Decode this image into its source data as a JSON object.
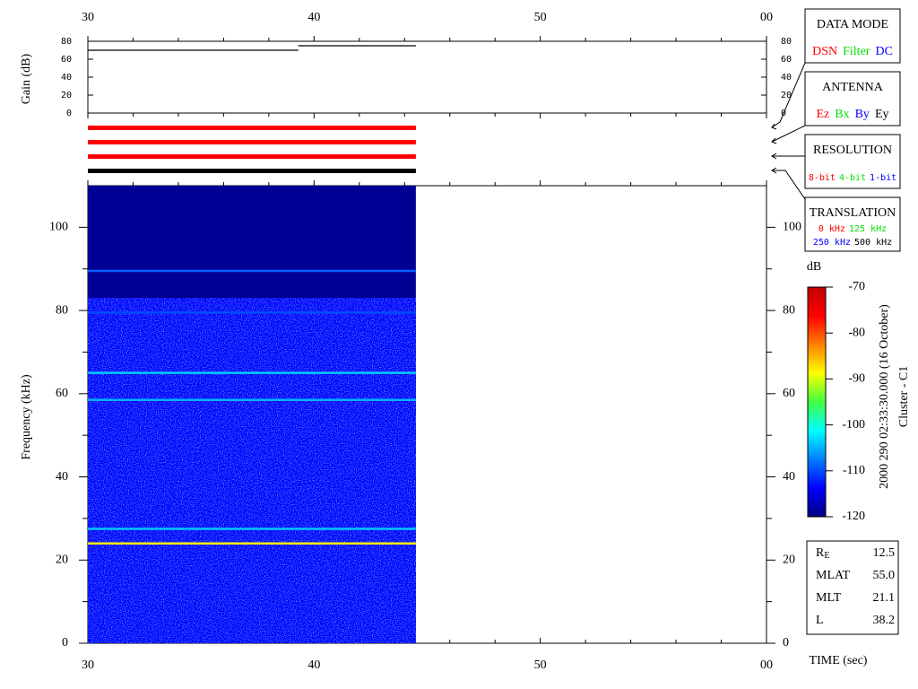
{
  "time_axis": {
    "label": "TIME (sec)",
    "xlim": [
      30,
      60
    ],
    "xticks": [
      30,
      40,
      50,
      {
        "value": 60,
        "label": "00"
      }
    ],
    "xminorticks": [
      32,
      34,
      36,
      38,
      42,
      44,
      46,
      48,
      52,
      54,
      56,
      58
    ]
  },
  "chart_data": [
    {
      "type": "line",
      "y_label": "Gain (dB)",
      "ylim": [
        0,
        80
      ],
      "yticks": [
        0,
        20,
        40,
        60,
        80
      ],
      "color": "#000000",
      "segments": [
        {
          "x": [
            30,
            39.3
          ],
          "values": [
            70,
            70
          ]
        },
        {
          "x": [
            39.3,
            44.5
          ],
          "values": [
            75,
            75
          ]
        }
      ]
    },
    {
      "type": "status",
      "bars": [
        {
          "color": "#ff0000",
          "x": [
            30,
            44.5
          ]
        },
        {
          "color": "#ff0000",
          "x": [
            30,
            44.5
          ]
        },
        {
          "color": "#ff0000",
          "x": [
            30,
            44.5
          ]
        },
        {
          "color": "#000000",
          "x": [
            30,
            44.5
          ]
        }
      ]
    },
    {
      "type": "spectrogram",
      "y_label": "Frequency (kHz)",
      "ylim": [
        0,
        110
      ],
      "yticks": [
        0,
        20,
        40,
        60,
        80,
        100
      ],
      "yminorticks": [
        10,
        30,
        50,
        70,
        90
      ],
      "x": [
        30,
        44.5
      ],
      "background_level": -119,
      "noise": {
        "top": 83,
        "level": -114
      },
      "lines": [
        {
          "frequency": 89.5,
          "level": -109
        },
        {
          "frequency": 79.5,
          "level": -110
        },
        {
          "frequency": 65,
          "level": -104
        },
        {
          "frequency": 58.5,
          "level": -105
        },
        {
          "frequency": 27.5,
          "level": -104
        },
        {
          "frequency": 24,
          "level": -88
        }
      ],
      "colorbar": {
        "label": "dB",
        "clim": [
          -120,
          -70
        ],
        "ticks": [
          -120,
          -110,
          -100,
          -90,
          -80,
          -70
        ]
      }
    }
  ],
  "legends": [
    {
      "title": "DATA MODE",
      "rows": [
        [
          {
            "text": "DSN",
            "color": "#ff0000"
          },
          {
            "text": "Filter",
            "color": "#00e000"
          },
          {
            "text": "DC",
            "color": "#0000ff"
          }
        ]
      ]
    },
    {
      "title": "ANTENNA",
      "rows": [
        [
          {
            "text": "Ez",
            "color": "#ff0000"
          },
          {
            "text": "Bx",
            "color": "#00e000"
          },
          {
            "text": "By",
            "color": "#0000ff"
          },
          {
            "text": "Ey",
            "color": "#000000"
          }
        ]
      ]
    },
    {
      "title": "RESOLUTION",
      "rows": [
        [
          {
            "text": "8-bit",
            "color": "#ff0000"
          },
          {
            "text": "4-bit",
            "color": "#00e000"
          },
          {
            "text": "1-bit",
            "color": "#0000ff"
          }
        ]
      ]
    },
    {
      "title": "TRANSLATION",
      "rows": [
        [
          {
            "text": "0 kHz",
            "color": "#ff0000"
          },
          {
            "text": "125 kHz",
            "color": "#00e000"
          }
        ],
        [
          {
            "text": "250 kHz",
            "color": "#0000ff"
          },
          {
            "text": "500 kHz",
            "color": "#000000"
          }
        ]
      ]
    }
  ],
  "timestamp": "2000 290 02:33:30.000 (16 October)",
  "spacecraft": "Cluster - C1",
  "info": [
    {
      "label": "R",
      "subscript": "E",
      "value": "12.5"
    },
    {
      "label": "MLAT",
      "value": "55.0"
    },
    {
      "label": "MLT",
      "value": "21.1"
    },
    {
      "label": "L",
      "value": "38.2"
    }
  ]
}
